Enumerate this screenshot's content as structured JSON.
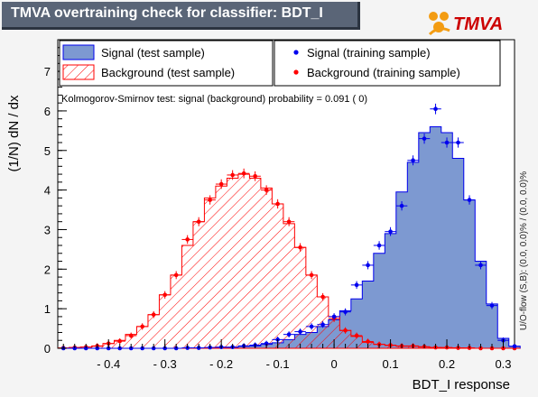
{
  "title": "TMVA overtraining check for classifier: BDT_I",
  "logo_text": "TMVA",
  "colors": {
    "signal_fill": "#7d99d1",
    "signal_line": "#0000ee",
    "background_hatch": "#ff0000",
    "background_marker": "#ff0000",
    "title_bar": "#5a6577",
    "logo_orange": "#f39c12"
  },
  "chart_data": {
    "type": "histogram",
    "title": "TMVA overtraining check for classifier: BDT_I",
    "xlabel": "BDT_I response",
    "ylabel": "(1/N) dN / dx",
    "side_label": "U/O-flow (S,B): (0.0, 0.0)% / (0.0, 0.0)%",
    "ks_text": "Kolmogorov-Smirnov test: signal (background) probability = 0.091 (    0)",
    "xlim": [
      -0.49,
      0.32
    ],
    "ylim": [
      0,
      7.8
    ],
    "x_ticks": [
      -0.4,
      -0.3,
      -0.2,
      -0.1,
      0,
      0.1,
      0.2,
      0.3
    ],
    "x_tick_labels": [
      "- 0.4",
      "- 0.3",
      "- 0.2",
      "- 0.1",
      "0",
      "0.1",
      "0.2",
      "0.3"
    ],
    "y_ticks": [
      0,
      1,
      2,
      3,
      4,
      5,
      6,
      7
    ],
    "bin_edges_start": -0.49,
    "bin_width": 0.02,
    "legend": [
      {
        "label": "Signal (test sample)",
        "style": "filled"
      },
      {
        "label": "Signal (training sample)",
        "style": "marker-blue"
      },
      {
        "label": "Background (test sample)",
        "style": "hatched"
      },
      {
        "label": "Background (training sample)",
        "style": "marker-red"
      }
    ],
    "series": [
      {
        "name": "Signal (test sample)",
        "values": [
          0,
          0,
          0,
          0,
          0,
          0,
          0,
          0,
          0,
          0,
          0,
          0,
          0,
          0.01,
          0.02,
          0.02,
          0.05,
          0.06,
          0.1,
          0.14,
          0.22,
          0.35,
          0.4,
          0.55,
          0.72,
          0.95,
          1.25,
          1.7,
          2.4,
          2.9,
          3.95,
          4.7,
          5.45,
          5.6,
          5.45,
          4.8,
          3.75,
          2.2,
          1.12,
          0.25,
          0.05
        ]
      },
      {
        "name": "Signal (training sample)",
        "values": [
          0,
          0,
          0,
          0,
          0,
          0,
          0,
          0,
          0,
          0,
          0,
          0.01,
          0.01,
          0.02,
          0.03,
          0.03,
          0.06,
          0.08,
          0.12,
          0.22,
          0.35,
          0.42,
          0.55,
          0.6,
          0.8,
          0.92,
          1.6,
          2.1,
          2.6,
          2.95,
          3.6,
          4.75,
          5.3,
          6.05,
          5.2,
          5.2,
          3.75,
          2.1,
          1.08,
          0.2,
          0.05
        ]
      },
      {
        "name": "Background (test sample)",
        "values": [
          0,
          0.02,
          0.03,
          0.05,
          0.12,
          0.2,
          0.35,
          0.55,
          0.85,
          1.35,
          1.85,
          2.6,
          3.2,
          3.8,
          4.1,
          4.3,
          4.4,
          4.3,
          4.05,
          3.65,
          3.15,
          2.55,
          1.85,
          1.3,
          0.8,
          0.45,
          0.3,
          0.15,
          0.1,
          0.07,
          0.05,
          0.05,
          0.03,
          0.02,
          0.01,
          0.01,
          0,
          0,
          0,
          0,
          0
        ]
      },
      {
        "name": "Background (training sample)",
        "values": [
          0.01,
          0.02,
          0.03,
          0.06,
          0.12,
          0.18,
          0.32,
          0.55,
          0.85,
          1.35,
          1.85,
          2.75,
          3.2,
          3.75,
          4.15,
          4.38,
          4.42,
          4.35,
          4.0,
          3.65,
          3.2,
          2.55,
          1.85,
          1.3,
          0.75,
          0.45,
          0.32,
          0.17,
          0.1,
          0.08,
          0.06,
          0.06,
          0.04,
          0.02,
          0.02,
          0.01,
          0.01,
          0,
          0,
          0,
          0
        ]
      }
    ]
  }
}
